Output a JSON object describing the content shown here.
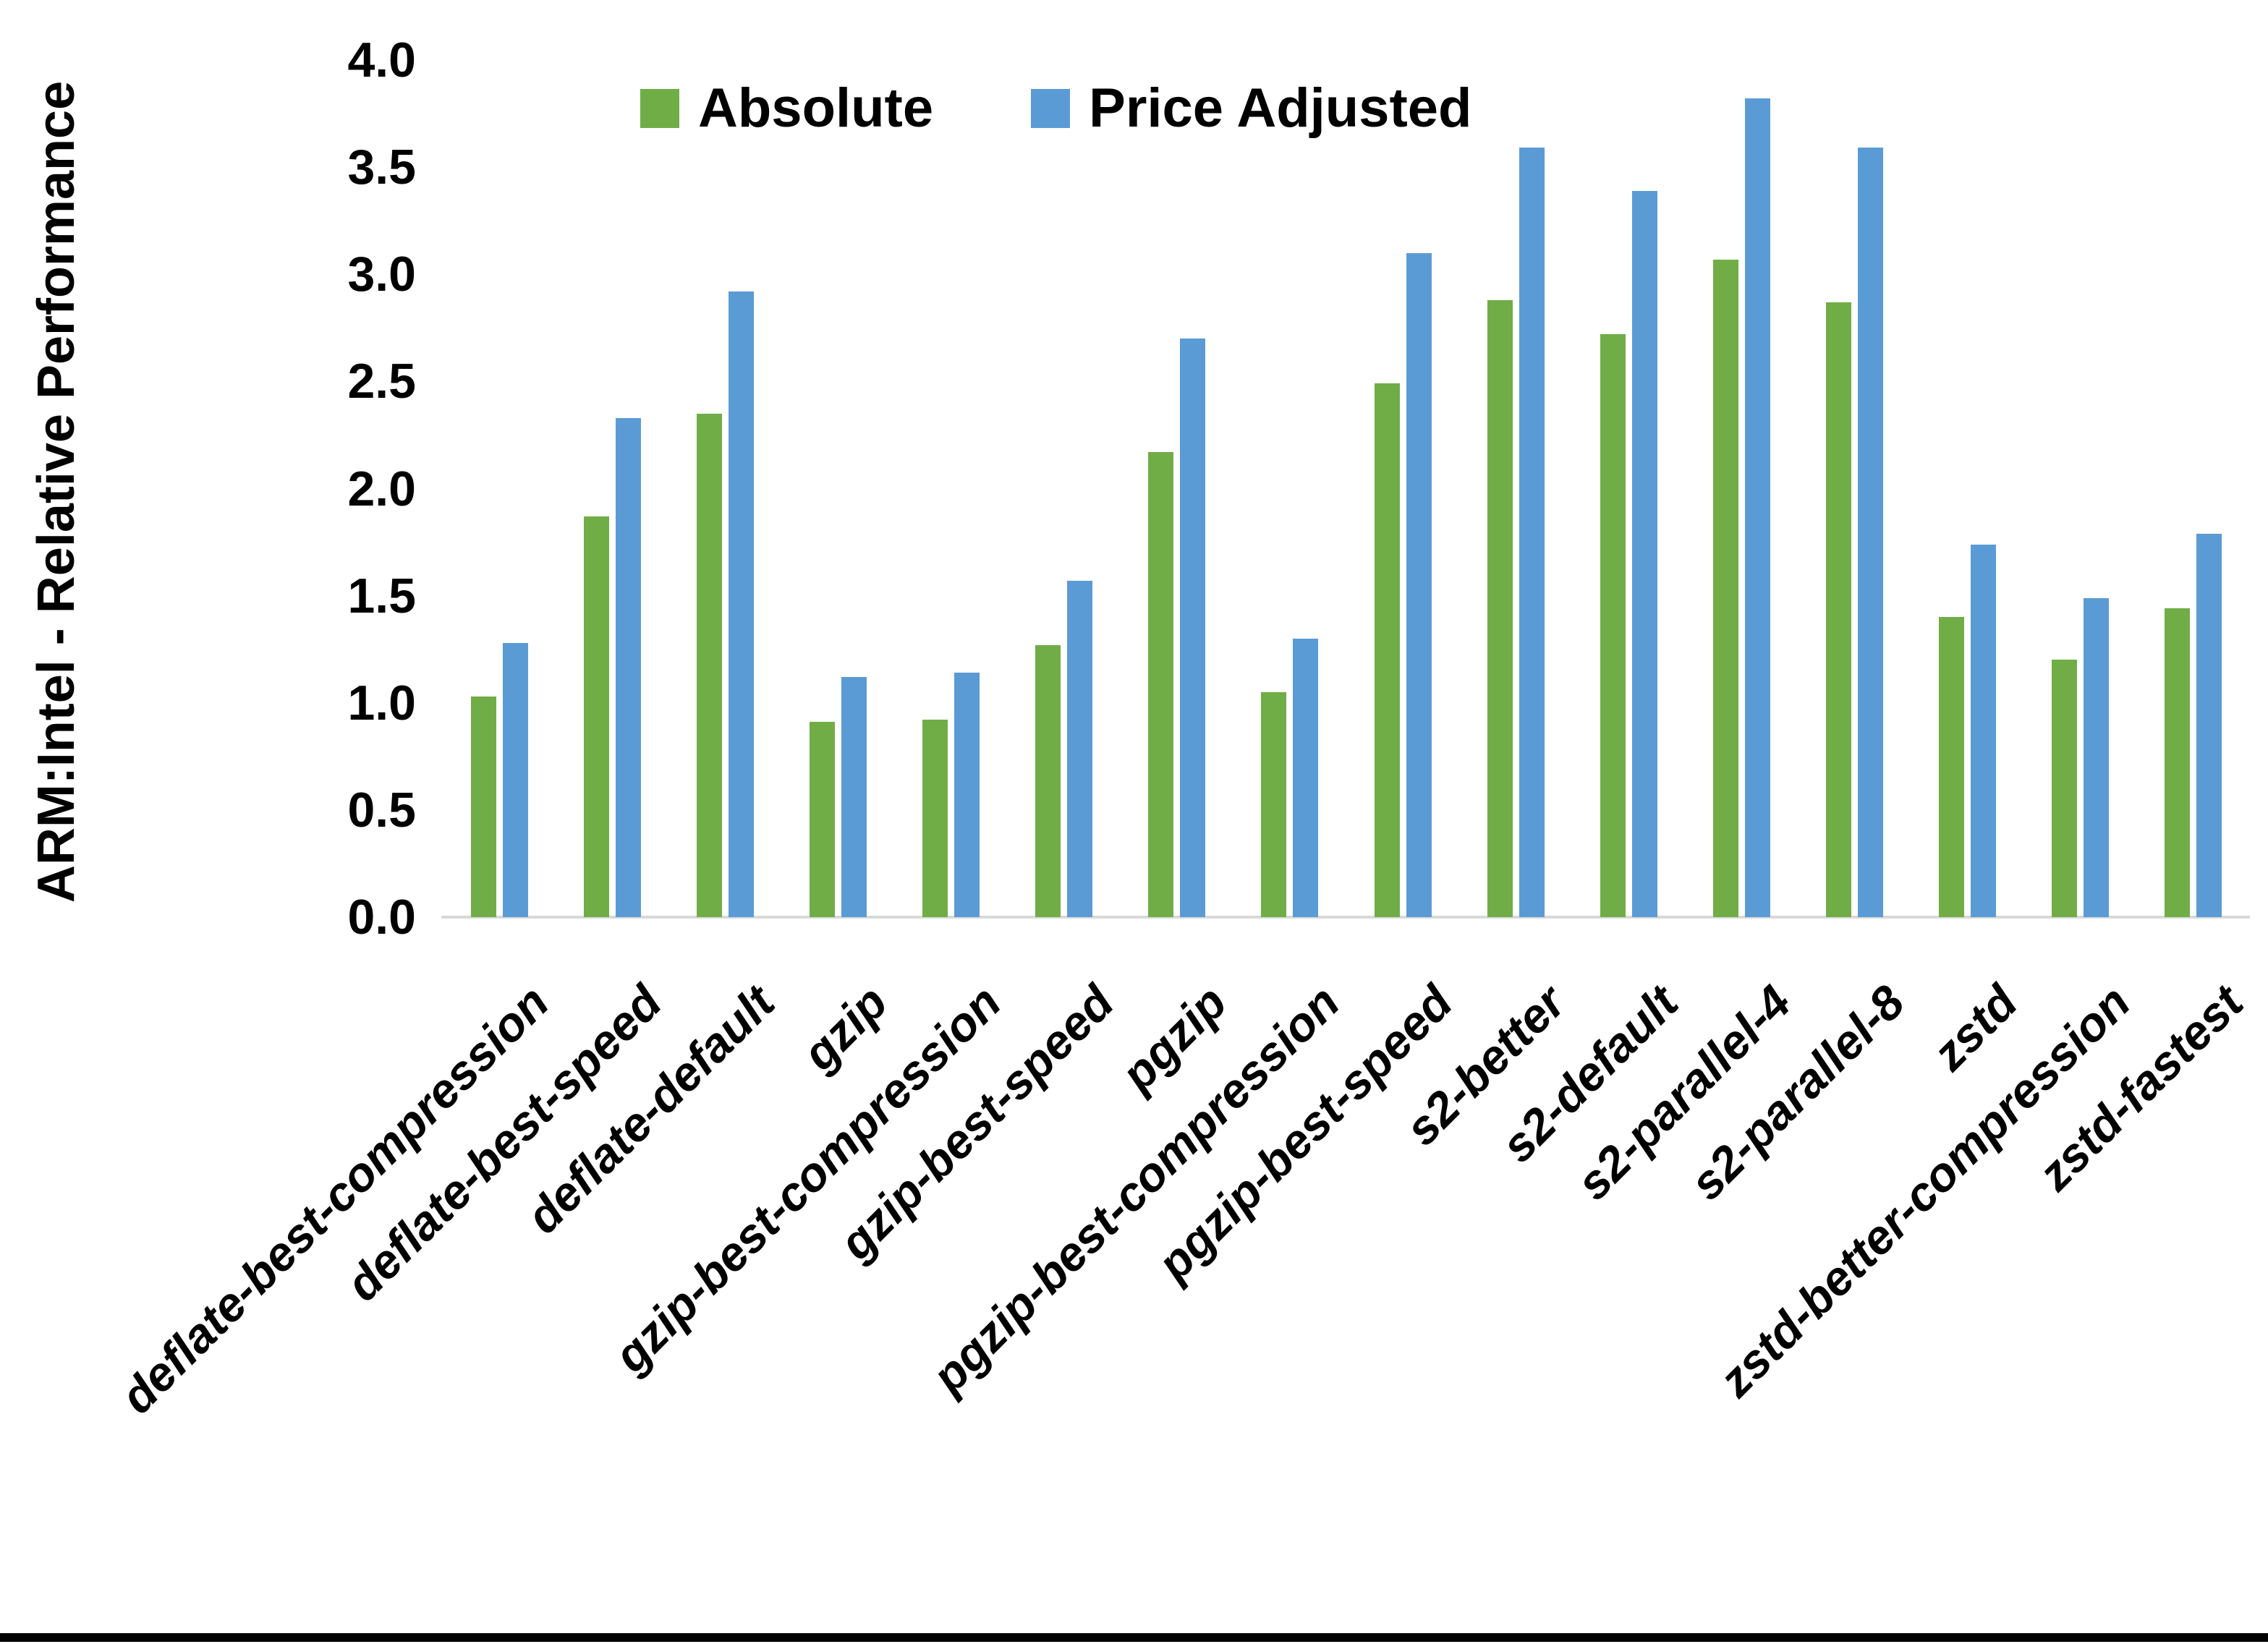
{
  "chart_data": {
    "type": "bar",
    "title": "",
    "xlabel": "",
    "ylabel": "ARM:Intel - Relative Performance",
    "ylim": [
      0.0,
      4.0
    ],
    "ytick_step": 0.5,
    "ytick_labels": [
      "4.0",
      "3.5",
      "3.0",
      "2.5",
      "2.0",
      "1.5",
      "1.0",
      "0.5",
      "0.0"
    ],
    "grid": false,
    "legend_position": "top-center",
    "categories": [
      "deflate-best-compression",
      "deflate-best-speed",
      "deflate-default",
      "gzip",
      "gzip-best-compression",
      "gzip-best-speed",
      "pgzip",
      "pgzip-best-compression",
      "pgzip-best-speed",
      "s2-better",
      "s2-default",
      "s2-parallel-4",
      "s2-parallel-8",
      "zstd",
      "zstd-better-compression",
      "zstd-fastest"
    ],
    "series": [
      {
        "name": "Absolute",
        "color": "#70AD47",
        "values": [
          1.03,
          1.87,
          2.35,
          0.91,
          0.92,
          1.27,
          2.17,
          1.05,
          2.49,
          2.88,
          2.72,
          3.07,
          2.87,
          1.4,
          1.2,
          1.44
        ]
      },
      {
        "name": "Price Adjusted",
        "color": "#5B9BD5",
        "values": [
          1.28,
          2.33,
          2.92,
          1.12,
          1.14,
          1.57,
          2.7,
          1.3,
          3.1,
          3.59,
          3.39,
          3.82,
          3.59,
          1.74,
          1.49,
          1.79
        ]
      }
    ]
  },
  "colors": {
    "background": "#FFFFFF",
    "text": "#000000",
    "axis_line": "#D9D9D9",
    "series_absolute": "#70AD47",
    "series_price_adjusted": "#5B9BD5",
    "bottom_edge_bar": "#000000"
  }
}
